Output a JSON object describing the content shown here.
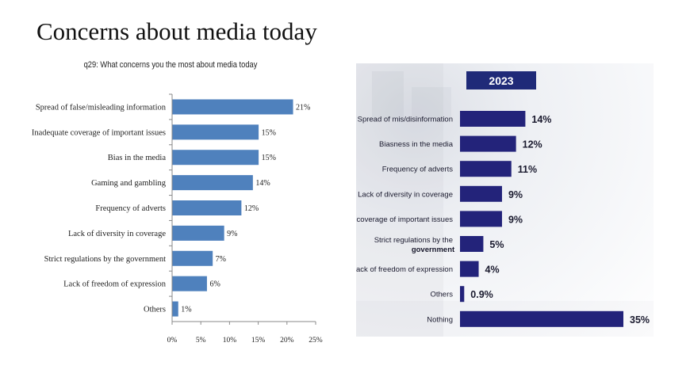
{
  "page": {
    "title": "Concerns about media today"
  },
  "chart_data": [
    {
      "type": "bar",
      "orientation": "horizontal",
      "title": "q29: What concerns you the most about media today",
      "categories": [
        "Spread of false/misleading information",
        "Inadequate coverage of important issues",
        "Bias in the media",
        "Gaming and gambling",
        "Frequency of adverts",
        "Lack of diversity in coverage",
        "Strict regulations by the government",
        "Lack of freedom of expression",
        "Others"
      ],
      "values": [
        21,
        15,
        15,
        14,
        12,
        9,
        7,
        6,
        1
      ],
      "value_labels": [
        "21%",
        "15%",
        "15%",
        "14%",
        "12%",
        "9%",
        "7%",
        "6%",
        "1%"
      ],
      "xlim": [
        0,
        25
      ],
      "xticks": [
        0,
        5,
        10,
        15,
        20,
        25
      ],
      "xtick_labels": [
        "0%",
        "5%",
        "10%",
        "15%",
        "20%",
        "25%"
      ],
      "bar_color": "#4f81bd",
      "grid": false
    },
    {
      "type": "bar",
      "orientation": "horizontal",
      "title": "2023",
      "categories": [
        [
          "Spread of mis/disinformation"
        ],
        [
          "Biasness in the media"
        ],
        [
          "Frequency of adverts"
        ],
        [
          "Lack of diversity in coverage"
        ],
        [
          "coverage of important issues"
        ],
        [
          "Strict regulations by the",
          "government"
        ],
        [
          "Lack of freedom of expression"
        ],
        [
          "Others"
        ],
        [
          "Nothing"
        ]
      ],
      "values": [
        14,
        12,
        11,
        9,
        9,
        5,
        4,
        0.9,
        35
      ],
      "value_labels": [
        "14%",
        "12%",
        "11%",
        "9%",
        "9%",
        "5%",
        "4%",
        "0.9%",
        "35%"
      ],
      "xlim": [
        0,
        35
      ],
      "bar_color": "#23237a",
      "title_box_color": "#1f2a78",
      "grid": false
    }
  ]
}
